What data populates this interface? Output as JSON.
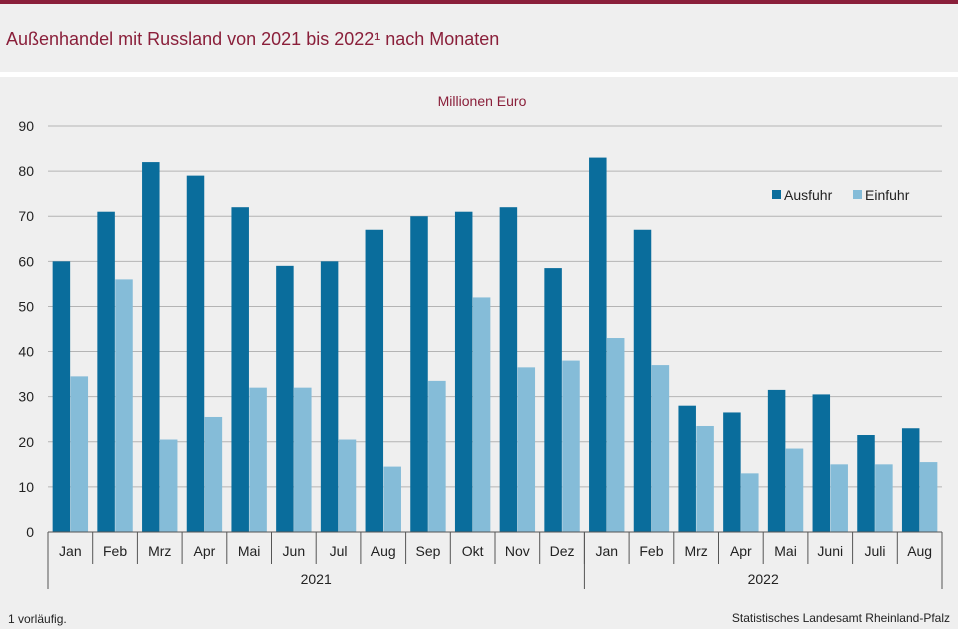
{
  "header": {
    "title": "Außenhandel mit Russland von 2021 bis 2022¹ nach Monaten"
  },
  "footer": {
    "footnote": "1 vorläufig.",
    "source": "Statistisches Landesamt Rheinland-Pfalz"
  },
  "colors": {
    "title": "#8a1f3a",
    "ausfuhr": "#0a6d9c",
    "einfuhr": "#85bcd8",
    "grid": "#b4b4b4"
  },
  "chart_data": {
    "type": "bar",
    "unit_label": "Millionen Euro",
    "ylim": [
      0,
      90
    ],
    "yticks": [
      0,
      10,
      20,
      30,
      40,
      50,
      60,
      70,
      80,
      90
    ],
    "grid": true,
    "legend_position": "top-right",
    "categories": [
      "Jan",
      "Feb",
      "Mrz",
      "Apr",
      "Mai",
      "Jun",
      "Jul",
      "Aug",
      "Sep",
      "Okt",
      "Nov",
      "Dez",
      "Jan",
      "Feb",
      "Mrz",
      "Apr",
      "Mai",
      "Juni",
      "Juli",
      "Aug"
    ],
    "groups": [
      {
        "label": "2021",
        "count": 12
      },
      {
        "label": "2022",
        "count": 8
      }
    ],
    "series": [
      {
        "name": "Ausfuhr",
        "values": [
          60,
          71,
          82,
          79,
          72,
          59,
          60,
          67,
          70,
          71,
          72,
          58.5,
          83,
          67,
          28,
          26.5,
          31.5,
          30.5,
          21.5,
          23
        ]
      },
      {
        "name": "Einfuhr",
        "values": [
          34.5,
          56,
          20.5,
          25.5,
          32,
          32,
          20.5,
          14.5,
          33.5,
          52,
          36.5,
          38,
          43,
          37,
          23.5,
          13,
          18.5,
          15,
          15,
          15.5
        ]
      }
    ]
  }
}
